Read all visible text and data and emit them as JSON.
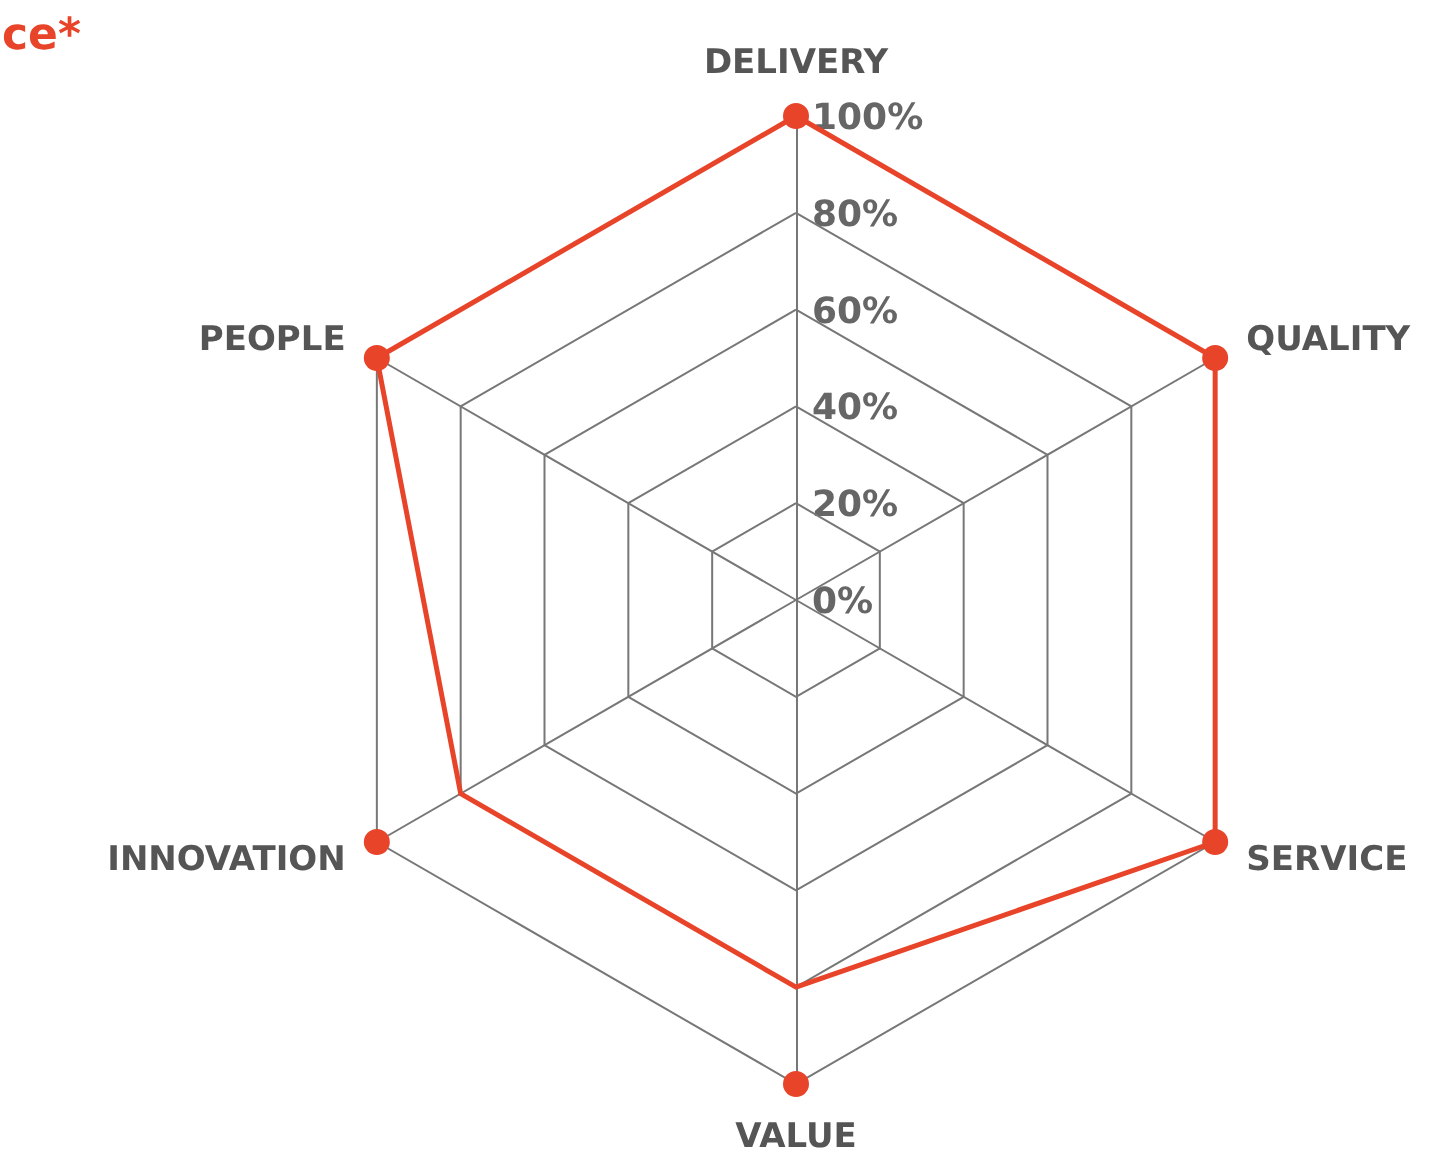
{
  "chart_data": {
    "type": "radar",
    "title": "ce*",
    "categories": [
      "DELIVERY",
      "QUALITY",
      "SERVICE",
      "VALUE",
      "INNOVATION",
      "PEOPLE"
    ],
    "series": [
      {
        "color": "#e8442a",
        "values": [
          100,
          100,
          100,
          80,
          80,
          100
        ]
      }
    ],
    "marker": "none",
    "line_style": "solid",
    "ylim": [
      0,
      100
    ],
    "yticks": [
      {
        "value": 0,
        "label": "0%"
      },
      {
        "value": 20,
        "label": "20%"
      },
      {
        "value": 40,
        "label": "40%"
      },
      {
        "value": 60,
        "label": "60%"
      },
      {
        "value": 80,
        "label": "80%"
      },
      {
        "value": 100,
        "label": "100%"
      }
    ],
    "grid": true
  }
}
